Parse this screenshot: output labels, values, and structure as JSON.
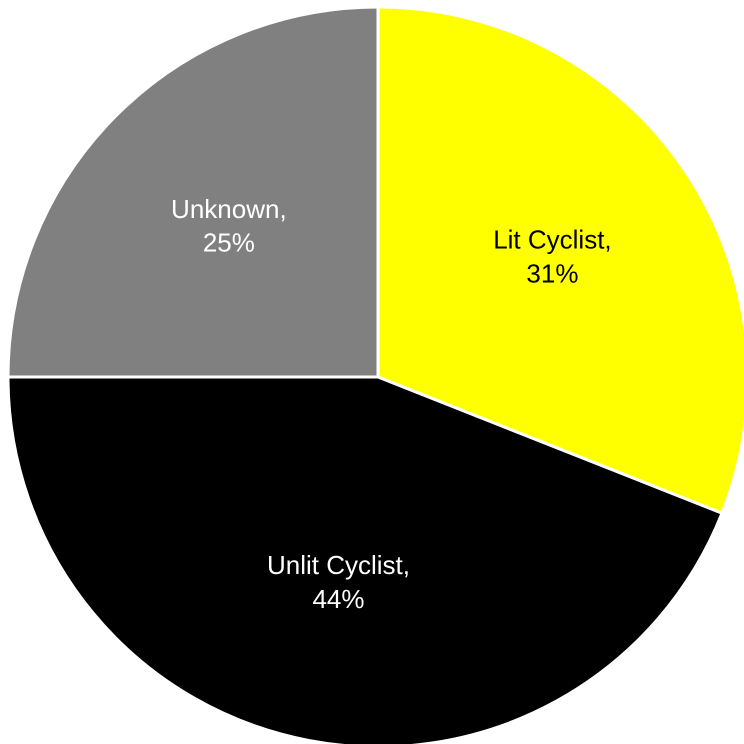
{
  "chart_data": {
    "type": "pie",
    "categories": [
      "Lit Cyclist,",
      "Unlit Cyclist,",
      "Unknown,"
    ],
    "values": [
      31,
      44,
      25
    ],
    "value_labels": [
      "31%",
      "44%",
      "25%"
    ],
    "colors": [
      "#ffff00",
      "#000000",
      "#808080"
    ]
  }
}
